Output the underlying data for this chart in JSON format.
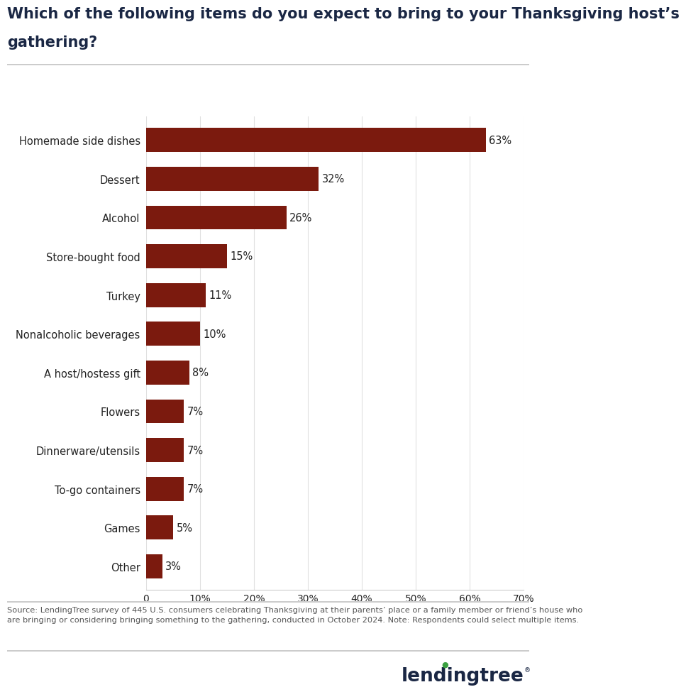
{
  "title_line1": "Which of the following items do you expect to bring to your Thanksgiving host’s",
  "title_line2": "gathering?",
  "categories": [
    "Homemade side dishes",
    "Dessert",
    "Alcohol",
    "Store-bought food",
    "Turkey",
    "Nonalcoholic beverages",
    "A host/hostess gift",
    "Flowers",
    "Dinnerware/utensils",
    "To-go containers",
    "Games",
    "Other"
  ],
  "values": [
    63,
    32,
    26,
    15,
    11,
    10,
    8,
    7,
    7,
    7,
    5,
    3
  ],
  "bar_color": "#7B1A0E",
  "title_color": "#1a2744",
  "label_color": "#222222",
  "source_text": "Source: LendingTree survey of 445 U.S. consumers celebrating Thanksgiving at their parents’ place or a family member or friend’s house who\nare bringing or considering bringing something to the gathering, conducted in October 2024. Note: Respondents could select multiple items.",
  "xlim": [
    0,
    70
  ],
  "xticks": [
    0,
    10,
    20,
    30,
    40,
    50,
    60,
    70
  ],
  "xtick_labels": [
    "0",
    "10%",
    "20%",
    "30%",
    "40%",
    "50%",
    "60%",
    "70%"
  ],
  "fig_width": 8.0,
  "fig_height": 10.02,
  "background_color": "#ffffff",
  "separator_color": "#cccccc",
  "grid_color": "#e0e0e0",
  "source_color": "#555555",
  "logo_color": "#1a2744"
}
